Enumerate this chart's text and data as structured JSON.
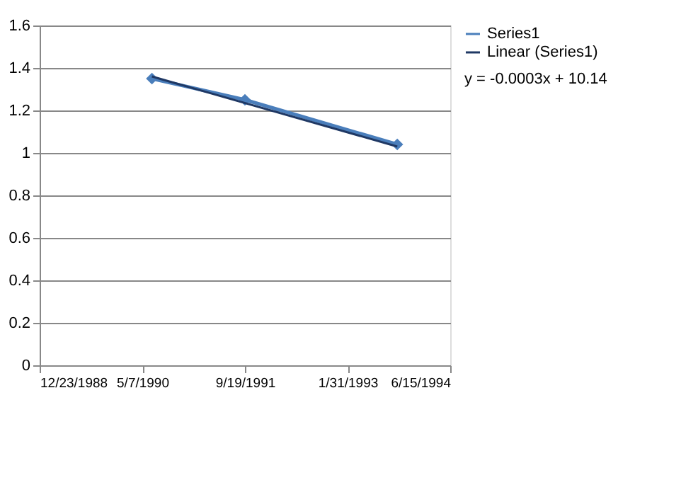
{
  "chart_data": {
    "type": "line",
    "series": [
      {
        "name": "Series1",
        "color": "#4a7ebb",
        "x": [
          "1990-06-23",
          "1991-09-19",
          "1993-09-30"
        ],
        "values": [
          1.35,
          1.25,
          1.04
        ],
        "marker": "diamond"
      },
      {
        "name": "Linear (Series1)",
        "color": "#1f3864",
        "type": "line",
        "x": [
          "1990-06-23",
          "1993-09-30"
        ],
        "values": [
          1.36,
          1.03
        ],
        "marker": "none"
      }
    ],
    "xlim": [
      "1988-12-23",
      "1994-06-15"
    ],
    "xticks": [
      {
        "value": "1988-12-23",
        "label": "12/23/1988"
      },
      {
        "value": "1990-05-07",
        "label": "5/7/1990"
      },
      {
        "value": "1991-09-19",
        "label": "9/19/1991"
      },
      {
        "value": "1993-01-31",
        "label": "1/31/1993"
      },
      {
        "value": "1994-06-15",
        "label": "6/15/1994"
      }
    ],
    "ylim": [
      0,
      1.6
    ],
    "yticks": [
      0,
      0.2,
      0.4,
      0.6,
      0.8,
      1,
      1.2,
      1.4,
      1.6
    ],
    "annotations": [
      "y = -0.0003x + 10.14"
    ],
    "grid": "y",
    "legend": "right"
  }
}
